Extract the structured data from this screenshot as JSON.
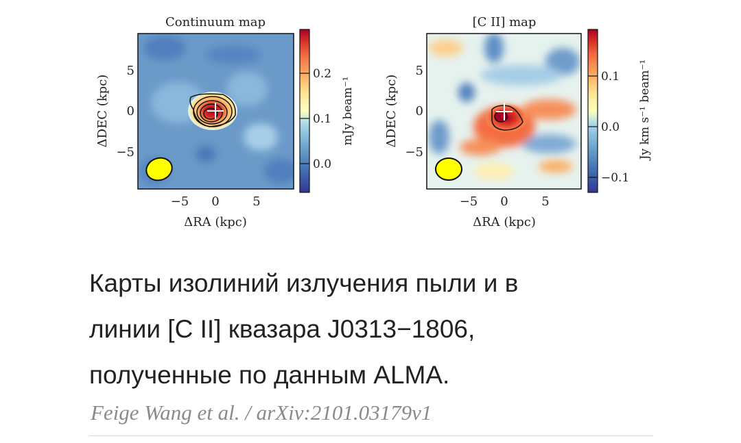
{
  "figure": {
    "panels": [
      {
        "title": "Continuum map",
        "xlabel": "ΔRA (kpc)",
        "ylabel": "ΔDEC (kpc)",
        "x_ticks": [
          "−5",
          "0",
          "5"
        ],
        "y_ticks": [
          "5",
          "0",
          "−5"
        ],
        "colorbar_label": "mJy beam⁻¹",
        "colorbar_ticks": [
          "0.2",
          "0.1",
          "0.0"
        ],
        "colormap": "RdYlBu_r",
        "beam_color": "#ffff00"
      },
      {
        "title": "[C II] map",
        "xlabel": "ΔRA (kpc)",
        "ylabel": "ΔDEC (kpc)",
        "x_ticks": [
          "−5",
          "0",
          "5"
        ],
        "y_ticks": [
          "5",
          "0",
          "−5"
        ],
        "colorbar_label": "Jy km s⁻¹ beam⁻¹",
        "colorbar_ticks": [
          "0.1",
          "0.0",
          "−0.1"
        ],
        "colormap": "RdYlBu_r",
        "beam_color": "#ffff00"
      }
    ]
  },
  "chart_data": [
    {
      "type": "heatmap",
      "title": "Continuum map",
      "xlabel": "ΔRA (kpc)",
      "ylabel": "ΔDEC (kpc)",
      "xlim": [
        -9.5,
        9.5
      ],
      "ylim": [
        -9.5,
        9.5
      ],
      "colorbar_range": [
        -0.05,
        0.28
      ],
      "peak": [
        0,
        0
      ]
    },
    {
      "type": "heatmap",
      "title": "[C II] map",
      "xlabel": "ΔRA (kpc)",
      "ylabel": "ΔDEC (kpc)",
      "xlim": [
        -9.5,
        9.5
      ],
      "ylim": [
        -9.5,
        9.5
      ],
      "colorbar_range": [
        -0.13,
        0.19
      ],
      "peak": [
        0,
        0
      ]
    }
  ],
  "caption": {
    "lines": [
      "Карты изолиний излучения пыли и в",
      "линии [C II] квазара J0313−1806,",
      "полученные по данным ALMA."
    ]
  },
  "credit": "Feige Wang et al. / arXiv:2101.03179v1"
}
